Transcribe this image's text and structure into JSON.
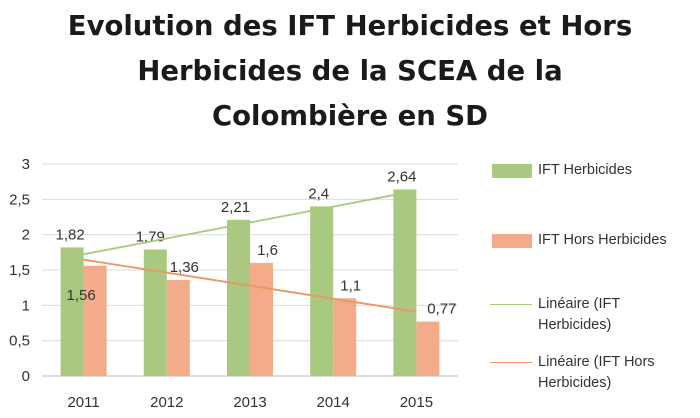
{
  "chart_data": {
    "type": "bar",
    "title_lines": [
      "Evolution des IFT Herbicides et Hors",
      "Herbicides de la SCEA de la",
      "Colombière en SD"
    ],
    "categories": [
      "2011",
      "2012",
      "2013",
      "2014",
      "2015"
    ],
    "yticks": [
      "0",
      "0,5",
      "1",
      "1,5",
      "2",
      "2,5",
      "3"
    ],
    "ylim": [
      0,
      3
    ],
    "grid": true,
    "legend_position": "right",
    "series": [
      {
        "name": "IFT Herbicides",
        "values": [
          1.82,
          1.79,
          2.21,
          2.4,
          2.64
        ],
        "labels": [
          "1,82",
          "1,79",
          "2,21",
          "2,4",
          "2,64"
        ],
        "color": "#a8c97f"
      },
      {
        "name": "IFT Hors Herbicides",
        "values": [
          1.56,
          1.36,
          1.6,
          1.1,
          0.77
        ],
        "labels": [
          "1,56",
          "1,36",
          "1,6",
          "1,1",
          "0,77"
        ],
        "color": "#f4ab8a"
      }
    ],
    "trendlines": [
      {
        "name_lines": [
          "Linéaire (IFT",
          "Herbicides)"
        ],
        "series_index": 0,
        "color": "#a8c97f"
      },
      {
        "name_lines": [
          "Linéaire (IFT Hors",
          "Herbicides)"
        ],
        "series_index": 1,
        "color": "#ee9662"
      }
    ]
  }
}
